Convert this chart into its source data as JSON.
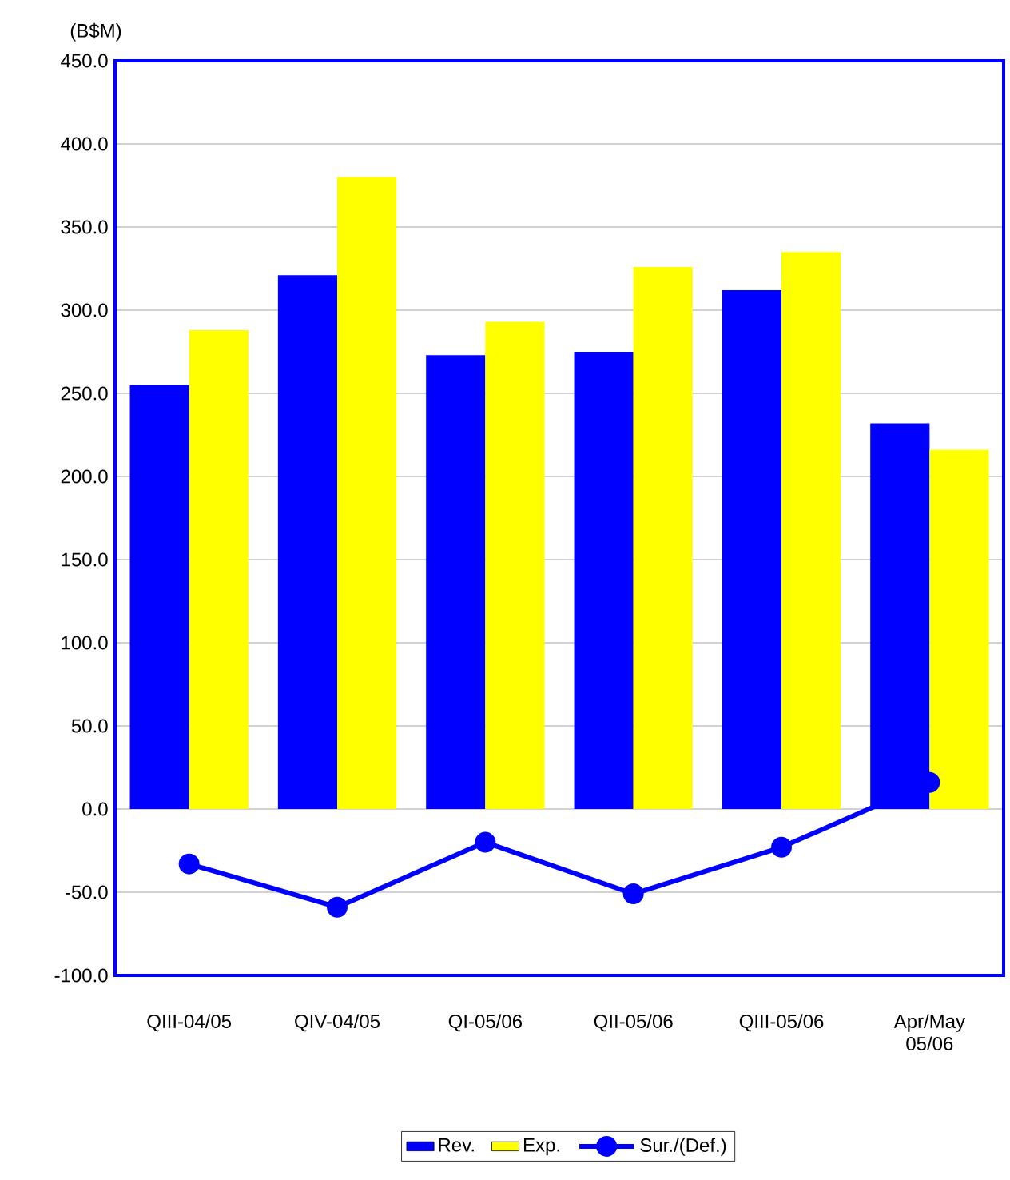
{
  "chart_data": {
    "type": "bar",
    "ylabel": "(B$M)",
    "categories": [
      "QIII-04/05",
      "QIV-04/05",
      "QI-05/06",
      "QII-05/06",
      "QIII-05/06",
      "Apr/May 05/06"
    ],
    "series": [
      {
        "name": "Rev.",
        "color": "#0000ff",
        "values": [
          255,
          321,
          273,
          275,
          312,
          232
        ]
      },
      {
        "name": "Exp.",
        "color": "#ffff00",
        "values": [
          288,
          380,
          293,
          326,
          335,
          216
        ]
      },
      {
        "name": "Sur./(Def.)",
        "type": "line",
        "color": "#0000ff",
        "marker": "circle",
        "line_style": "solid",
        "values": [
          -33,
          -59,
          -20,
          -51,
          -23,
          16
        ]
      }
    ],
    "ylim": [
      -100,
      450
    ],
    "yticks": [
      {
        "value": -100,
        "label": "-100.0"
      },
      {
        "value": -50,
        "label": "-50.0"
      },
      {
        "value": 0,
        "label": "0.0"
      },
      {
        "value": 50,
        "label": "50.0"
      },
      {
        "value": 100,
        "label": "100.0"
      },
      {
        "value": 150,
        "label": "150.0"
      },
      {
        "value": 200,
        "label": "200.0"
      },
      {
        "value": 250,
        "label": "250.0"
      },
      {
        "value": 300,
        "label": "300.0"
      },
      {
        "value": 350,
        "label": "350.0"
      },
      {
        "value": 400,
        "label": "400.0"
      },
      {
        "value": 450,
        "label": "450.0"
      }
    ],
    "grid": "y",
    "legend": "bottom"
  }
}
